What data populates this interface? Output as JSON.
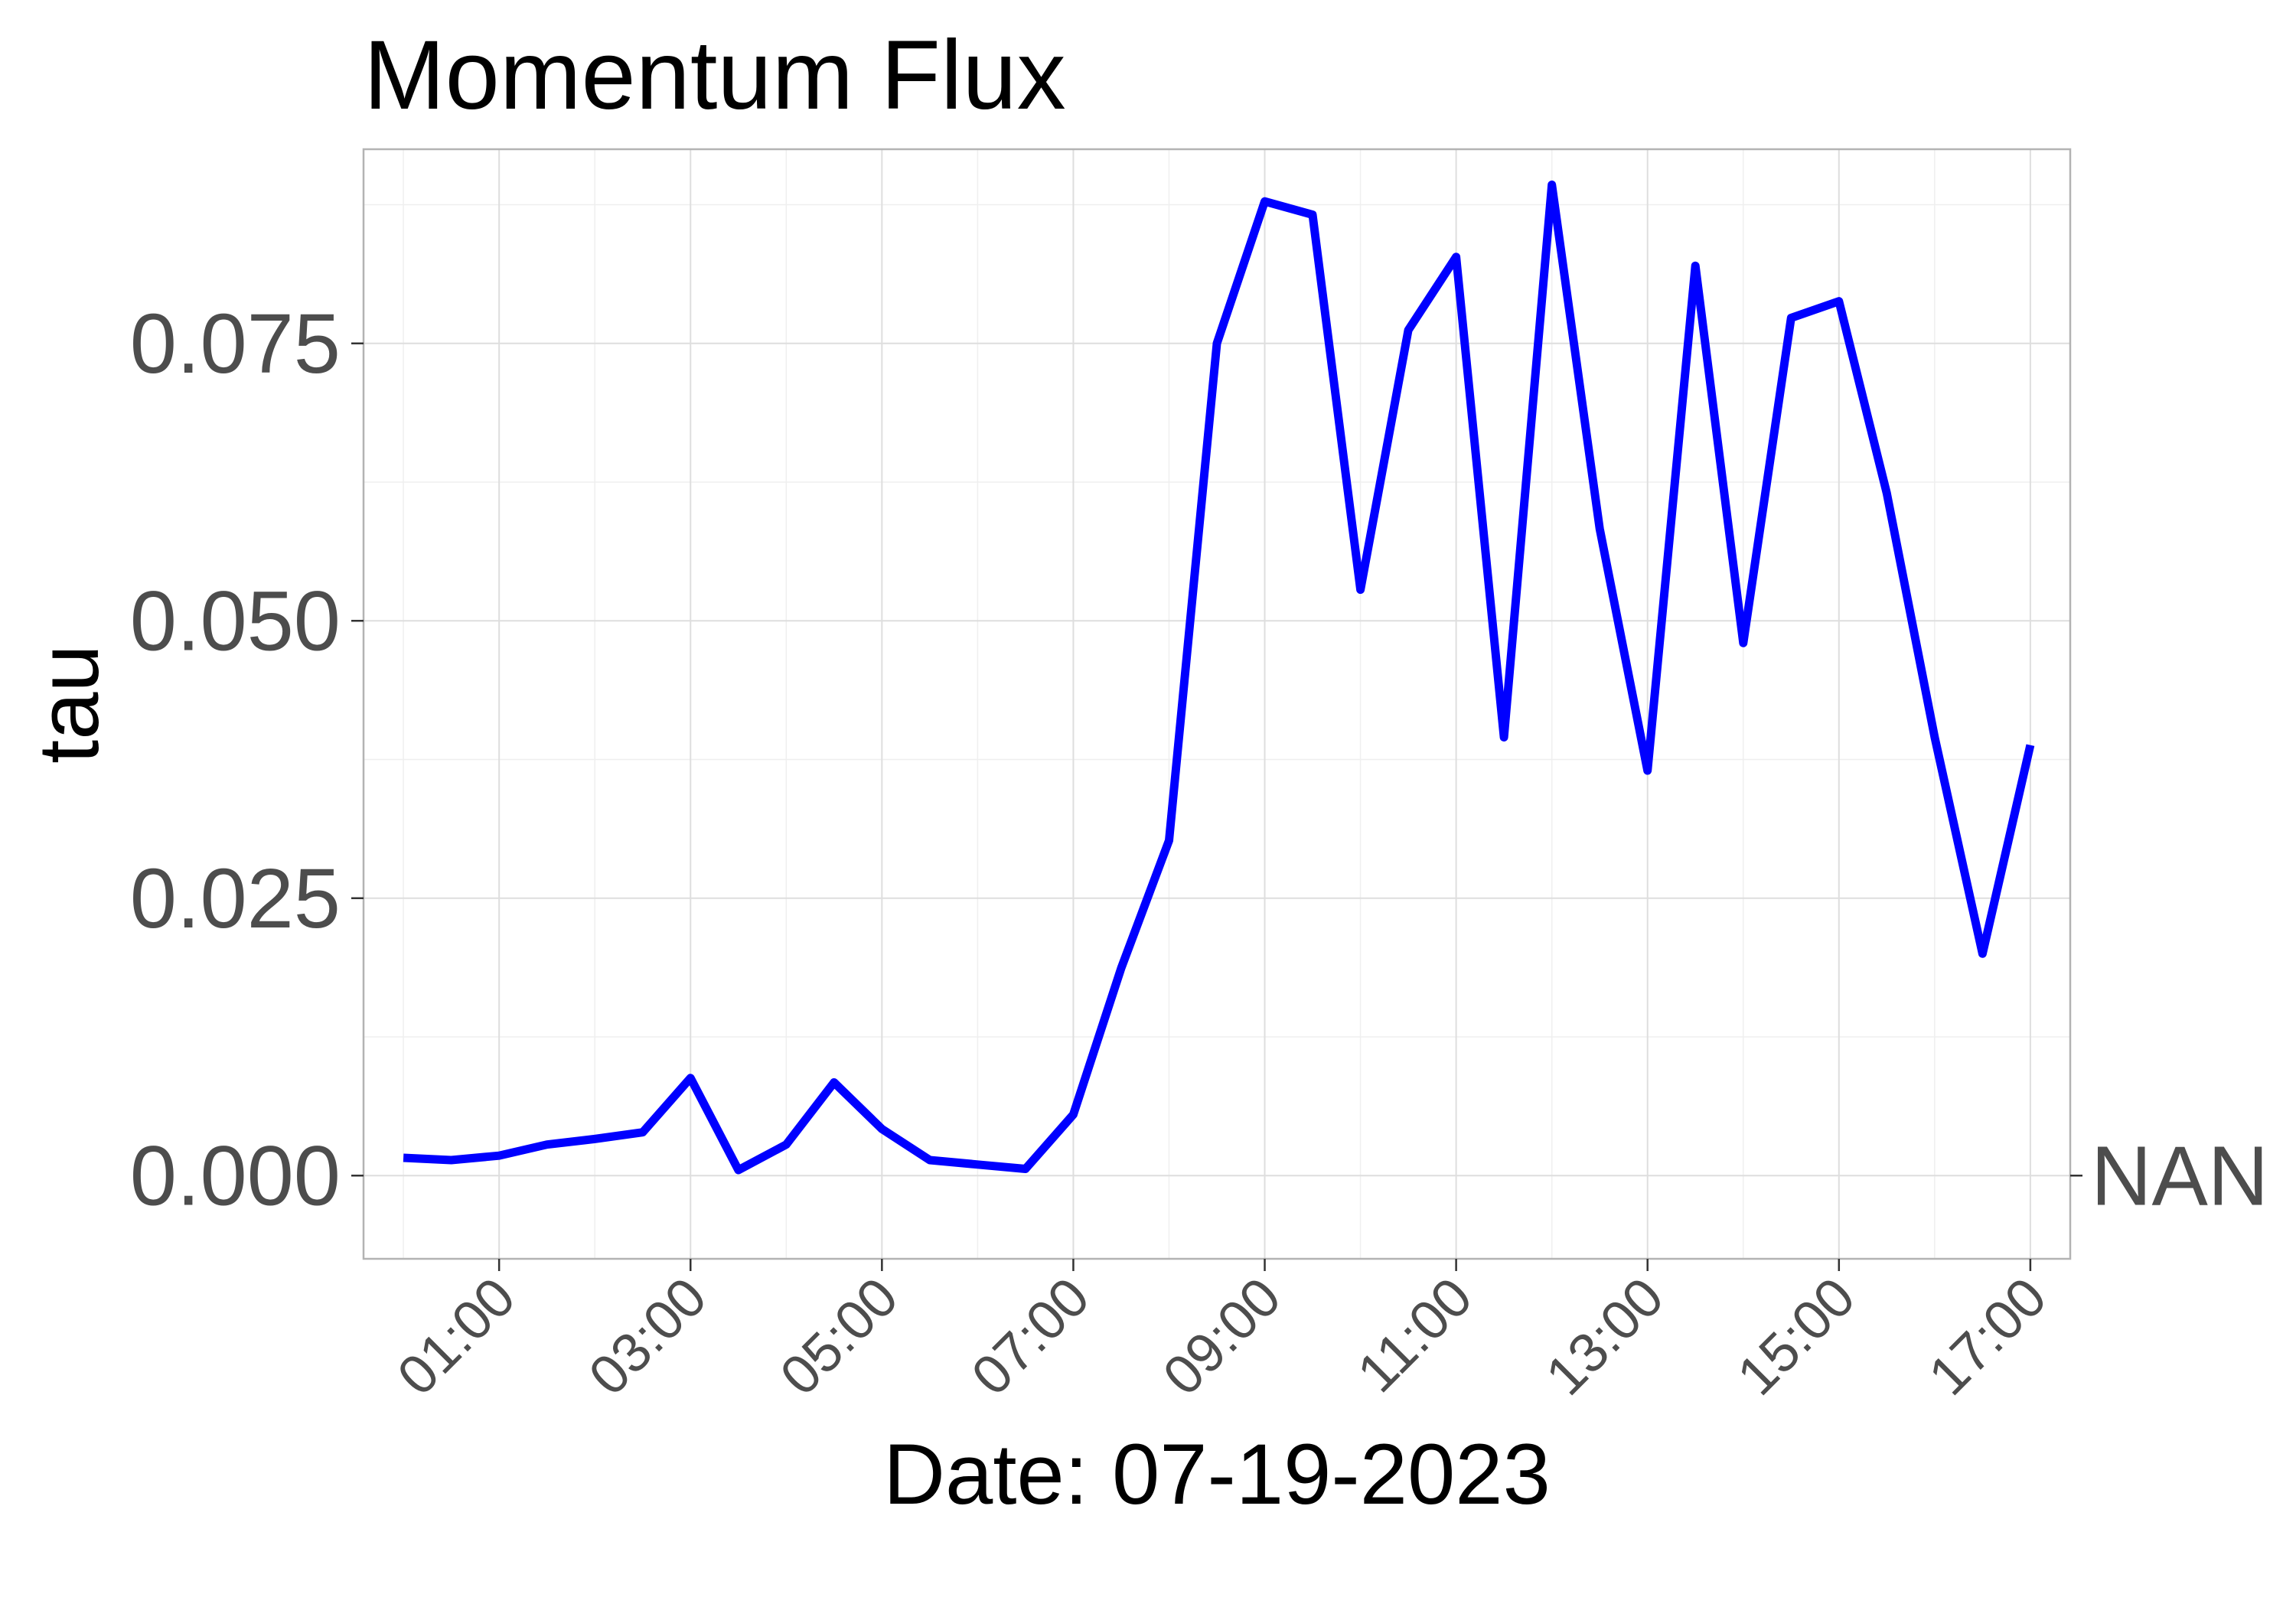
{
  "chart_data": {
    "type": "line",
    "title": "Momentum Flux",
    "xlabel": "Date: 07-19-2023",
    "ylabel": "tau",
    "secondary_axis_label": "NAN",
    "ylim": [
      -0.0075,
      0.0925
    ],
    "xlim": [
      "23:35",
      "17:25"
    ],
    "x_ticks": [
      "01:00",
      "03:00",
      "05:00",
      "07:00",
      "09:00",
      "11:00",
      "13:00",
      "15:00",
      "17:00"
    ],
    "y_ticks": [
      "0.000",
      "0.025",
      "0.050",
      "0.075"
    ],
    "grid": true,
    "line_color": "#0000ff",
    "series": [
      {
        "x": [
          "00:00",
          "00:30",
          "01:00",
          "01:30",
          "02:00",
          "02:30",
          "03:00",
          "03:30",
          "04:00",
          "04:30",
          "05:00",
          "05:30",
          "06:00",
          "06:30",
          "07:00",
          "07:30",
          "08:00",
          "08:30",
          "09:00",
          "09:30",
          "10:00",
          "10:30",
          "11:00",
          "11:30",
          "12:00",
          "12:30",
          "13:00",
          "13:30",
          "14:00",
          "14:30",
          "15:00",
          "15:30",
          "16:00",
          "16:30",
          "17:00"
        ],
        "values": [
          0.0016,
          0.0014,
          0.0018,
          0.0028,
          0.0033,
          0.0039,
          0.0088,
          0.0005,
          0.0028,
          0.0084,
          0.0042,
          0.0014,
          0.001,
          0.0006,
          0.0055,
          0.0187,
          0.0302,
          0.075,
          0.0878,
          0.0866,
          0.0528,
          0.0762,
          0.0828,
          0.0395,
          0.0893,
          0.0583,
          0.0365,
          0.082,
          0.048,
          0.0773,
          0.0788,
          0.0615,
          0.0395,
          0.02,
          0.0388
        ]
      }
    ]
  }
}
